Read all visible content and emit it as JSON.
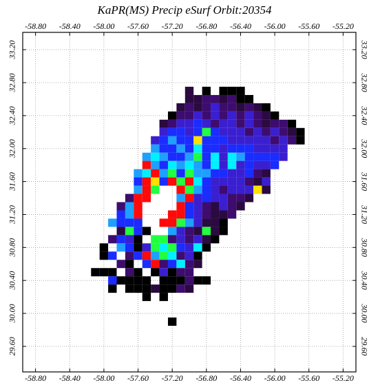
{
  "chart_data": {
    "type": "heatmap",
    "title": "KaPR(MS) Precip eSurf Orbit:20354",
    "xlim": [
      -58.95,
      -55.05
    ],
    "ylim": [
      29.29,
      33.41
    ],
    "xticks": [
      {
        "value": -58.8,
        "label": "-58.80"
      },
      {
        "value": -58.4,
        "label": "-58.40"
      },
      {
        "value": -58.0,
        "label": "-58.00"
      },
      {
        "value": -57.6,
        "label": "-57.60"
      },
      {
        "value": -57.2,
        "label": "-57.20"
      },
      {
        "value": -56.8,
        "label": "-56.80"
      },
      {
        "value": -56.4,
        "label": "-56.40"
      },
      {
        "value": -56.0,
        "label": "-56.00"
      },
      {
        "value": -55.6,
        "label": "-55.60"
      },
      {
        "value": -55.2,
        "label": "-55.20"
      }
    ],
    "yticks": [
      {
        "value": 29.6,
        "label": "29.60"
      },
      {
        "value": 30.0,
        "label": "30.00"
      },
      {
        "value": 30.4,
        "label": "30.40"
      },
      {
        "value": 30.8,
        "label": "30.80"
      },
      {
        "value": 31.2,
        "label": "31.20"
      },
      {
        "value": 31.6,
        "label": "31.60"
      },
      {
        "value": 32.0,
        "label": "32.00"
      },
      {
        "value": 32.4,
        "label": "32.40"
      },
      {
        "value": 32.8,
        "label": "32.80"
      },
      {
        "value": 33.2,
        "label": "33.20"
      }
    ],
    "grid": true,
    "rows": [
      {
        "lat": 32.7,
        "lon": [
          -57.0,
          -56.8,
          -56.6,
          -56.5,
          -56.4
        ],
        "colors": [
          "#2a0a40",
          "#000000",
          "#000000",
          "#000000",
          "#000000"
        ]
      },
      {
        "lat": 32.6,
        "lon": [
          -57.0,
          -56.9,
          -56.8,
          -56.7,
          -56.6,
          -56.5,
          -56.4,
          -56.3
        ],
        "colors": [
          "#2a0a40",
          "#2a0a40",
          "#3d0c6e",
          "#3d0c6e",
          "#2a0a40",
          "#3d0c6e",
          "#000000",
          "#000000"
        ]
      },
      {
        "lat": 32.5,
        "lon": [
          -57.1,
          -57.0,
          -56.9,
          -56.8,
          -56.7,
          -56.6,
          -56.5,
          -56.4,
          -56.3,
          -56.2,
          -56.1
        ],
        "colors": [
          "#2a0a40",
          "#3d0c6e",
          "#2a0a40",
          "#3d0c6e",
          "#3a1fd0",
          "#3d0c6e",
          "#3d0c6e",
          "#2a0a40",
          "#3d0c6e",
          "#2a0a40",
          "#000000"
        ]
      },
      {
        "lat": 32.4,
        "lon": [
          -57.2,
          -57.1,
          -57.0,
          -56.9,
          -56.8,
          -56.7,
          -56.6,
          -56.5,
          -56.4,
          -56.3,
          -56.2,
          -56.1,
          -56.0
        ],
        "colors": [
          "#000000",
          "#3d0c6e",
          "#3d0c6e",
          "#3a1fd0",
          "#3d0c6e",
          "#3a1fd0",
          "#3d0c6e",
          "#3a1fd0",
          "#3d0c6e",
          "#3a1fd0",
          "#3d0c6e",
          "#2a0a40",
          "#000000"
        ]
      },
      {
        "lat": 32.3,
        "lon": [
          -57.3,
          -57.2,
          -57.1,
          -57.0,
          -56.9,
          -56.8,
          -56.7,
          -56.6,
          -56.5,
          -56.4,
          -56.3,
          -56.2,
          -56.1,
          -56.0,
          -55.9,
          -55.8
        ],
        "colors": [
          "#2a0a40",
          "#3d0c6e",
          "#3a1fd0",
          "#3a1fd0",
          "#1a2cff",
          "#3a1fd0",
          "#3d0c6e",
          "#3a1fd0",
          "#3a1fd0",
          "#3d0c6e",
          "#3a1fd0",
          "#3d0c6e",
          "#2a0a40",
          "#3d0c6e",
          "#3d0c6e",
          "#000000"
        ]
      },
      {
        "lat": 32.2,
        "lon": [
          -57.3,
          -57.2,
          -57.1,
          -57.0,
          -56.9,
          -56.8,
          -56.7,
          -56.6,
          -56.5,
          -56.4,
          -56.3,
          -56.2,
          -56.1,
          -56.0,
          -55.9,
          -55.8,
          -55.7
        ],
        "colors": [
          "#3a1fd0",
          "#1a2cff",
          "#1a2cff",
          "#3a1fd0",
          "#1a2cff",
          "#20ff40",
          "#1a2cff",
          "#3a1fd0",
          "#3a1fd0",
          "#3a1fd0",
          "#3d0c6e",
          "#3a1fd0",
          "#3d0c6e",
          "#3a1fd0",
          "#3d0c6e",
          "#2a0a40",
          "#000000"
        ]
      },
      {
        "lat": 32.1,
        "lon": [
          -57.4,
          -57.3,
          -57.2,
          -57.1,
          -57.0,
          -56.9,
          -56.8,
          -56.7,
          -56.6,
          -56.5,
          -56.4,
          -56.3,
          -56.2,
          -56.1,
          -56.0,
          -55.9,
          -55.8,
          -55.7
        ],
        "colors": [
          "#3a1fd0",
          "#1a2cff",
          "#1ea0ff",
          "#1a2cff",
          "#1a2cff",
          "#ffe000",
          "#1a2cff",
          "#1a2cff",
          "#1a2cff",
          "#3a1fd0",
          "#3a1fd0",
          "#3a1fd0",
          "#3a1fd0",
          "#3a1fd0",
          "#3d0c6e",
          "#3a1fd0",
          "#3d0c6e",
          "#000000"
        ]
      },
      {
        "lat": 32.0,
        "lon": [
          -57.4,
          -57.3,
          -57.2,
          -57.1,
          -57.0,
          -56.9,
          -56.8,
          -56.7,
          -56.6,
          -56.5,
          -56.4,
          -56.3,
          -56.2,
          -56.1,
          -56.0,
          -55.9
        ],
        "colors": [
          "#1ea0ff",
          "#1a2cff",
          "#1a2cff",
          "#1ea0ff",
          "#1a2cff",
          "#00f0ff",
          "#1a2cff",
          "#1a2cff",
          "#3a1fd0",
          "#1a2cff",
          "#1a2cff",
          "#1a2cff",
          "#3a1fd0",
          "#3a1fd0",
          "#3a1fd0",
          "#3a1fd0"
        ]
      },
      {
        "lat": 31.9,
        "lon": [
          -57.5,
          -57.4,
          -57.3,
          -57.2,
          -57.1,
          -57.0,
          -56.9,
          -56.8,
          -56.7,
          -56.6,
          -56.5,
          -56.4,
          -56.3,
          -56.2,
          -56.1,
          -56.0,
          -55.9
        ],
        "colors": [
          "#1ea0ff",
          "#00f0ff",
          "#1ea0ff",
          "#1a2cff",
          "#1a2cff",
          "#1ea0ff",
          "#20ff40",
          "#1a2cff",
          "#00f0ff",
          "#3a1fd0",
          "#00f0ff",
          "#1ea0ff",
          "#1a2cff",
          "#1a2cff",
          "#1a2cff",
          "#1a2cff",
          "#3a1fd0"
        ]
      },
      {
        "lat": 31.8,
        "lon": [
          -57.5,
          -57.4,
          -57.3,
          -57.2,
          -57.1,
          -57.0,
          -56.9,
          -56.8,
          -56.7,
          -56.6,
          -56.5,
          -56.4,
          -56.3,
          -56.2,
          -56.1,
          -56.0
        ],
        "colors": [
          "#ff0a0a",
          "#1ea0ff",
          "#1a2cff",
          "#00f0ff",
          "#1ea0ff",
          "#00f0ff",
          "#1ea0ff",
          "#1a2cff",
          "#00f0ff",
          "#3a1fd0",
          "#00f0ff",
          "#3a1fd0",
          "#1a2cff",
          "#3a1fd0",
          "#3a1fd0",
          "#1a2cff"
        ]
      },
      {
        "lat": 31.7,
        "lon": [
          -57.6,
          -57.5,
          -57.4,
          -57.3,
          -57.2,
          -57.1,
          -57.0,
          -56.9,
          -56.8,
          -56.7,
          -56.6,
          -56.5,
          -56.4,
          -56.3,
          -56.2,
          -56.1
        ],
        "colors": [
          "#1ea0ff",
          "#00f0ff",
          "#ff0a0a",
          "#1ea0ff",
          "#20ff40",
          "#1a2cff",
          "#20ff40",
          "#1ea0ff",
          "#1ea0ff",
          "#1a2cff",
          "#1a2cff",
          "#3a1fd0",
          "#3a1fd0",
          "#1a2cff",
          "#3d0c6e",
          "#2a0a40"
        ]
      },
      {
        "lat": 31.6,
        "lon": [
          -57.6,
          -57.5,
          -57.4,
          -57.3,
          -57.2,
          -57.1,
          -57.0,
          -56.9,
          -56.8,
          -56.7,
          -56.6,
          -56.5,
          -56.4,
          -56.3,
          -56.2,
          -56.1
        ],
        "colors": [
          "#1a2cff",
          "#ff0a0a",
          "#ffe000",
          "#1a2cff",
          "#ff0a0a",
          "#20ff40",
          "#ff0a0a",
          "#00f0ff",
          "#1a2cff",
          "#3a1fd0",
          "#3a1fd0",
          "#3a1fd0",
          "#3a1fd0",
          "#3d0c6e",
          "#2a0a40",
          "#3a1fd0"
        ]
      },
      {
        "lat": 31.5,
        "lon": [
          -57.6,
          -57.5,
          -57.4,
          -57.1,
          -57.0,
          -56.9,
          -56.8,
          -56.7,
          -56.6,
          -56.5,
          -56.4,
          -56.3,
          -56.2,
          -56.1
        ],
        "colors": [
          "#1ea0ff",
          "#ff0a0a",
          "#20ff40",
          "#ff0a0a",
          "#20ff40",
          "#1ea0ff",
          "#1a2cff",
          "#3a1fd0",
          "#3d0c6e",
          "#3a1fd0",
          "#3a1fd0",
          "#3a1fd0",
          "#ffe000",
          "#2a0a40"
        ]
      },
      {
        "lat": 31.4,
        "lon": [
          -57.7,
          -57.6,
          -57.5,
          -57.1,
          -57.0,
          -56.9,
          -56.8,
          -56.7,
          -56.6,
          -56.5,
          -56.4,
          -56.3
        ],
        "colors": [
          "#3d0c6e",
          "#ff0a0a",
          "#ff0a0a",
          "#1ea0ff",
          "#ff0a0a",
          "#3a1fd0",
          "#1a2cff",
          "#3a1fd0",
          "#3a1fd0",
          "#3d0c6e",
          "#3d0c6e",
          "#2a0a40"
        ]
      },
      {
        "lat": 31.3,
        "lon": [
          -57.8,
          -57.7,
          -57.6,
          -57.1,
          -57.0,
          -56.9,
          -56.8,
          -56.7,
          -56.6,
          -56.5,
          -56.4
        ],
        "colors": [
          "#3d0c6e",
          "#1ea0ff",
          "#ff0a0a",
          "#ff0a0a",
          "#1a2cff",
          "#3a1fd0",
          "#3d0c6e",
          "#2a0a40",
          "#3a1fd0",
          "#3d0c6e",
          "#2a0a40"
        ]
      },
      {
        "lat": 31.2,
        "lon": [
          -57.8,
          -57.7,
          -57.6,
          -57.2,
          -57.1,
          -57.0,
          -56.9,
          -56.8,
          -56.7,
          -56.6,
          -56.5
        ],
        "colors": [
          "#1a2cff",
          "#1ea0ff",
          "#ff0a0a",
          "#ff0a0a",
          "#ff0a0a",
          "#1a2cff",
          "#3a1fd0",
          "#3d0c6e",
          "#2a0a40",
          "#2a0a40",
          "#3d0c6e"
        ]
      },
      {
        "lat": 31.1,
        "lon": [
          -57.9,
          -57.8,
          -57.7,
          -57.6,
          -57.3,
          -57.2,
          -57.1,
          -57.0,
          -56.9,
          -56.8,
          -56.7,
          -56.6
        ],
        "colors": [
          "#1ea0ff",
          "#1a2cff",
          "#1a2cff",
          "#1a2cff",
          "#ff0a0a",
          "#ff0a0a",
          "#20ff40",
          "#1ea0ff",
          "#3a1fd0",
          "#2a0a40",
          "#2a0a40",
          "#000000"
        ]
      },
      {
        "lat": 31.0,
        "lon": [
          -57.8,
          -57.7,
          -57.6,
          -57.5,
          -57.2,
          -57.1,
          -57.0,
          -56.9,
          -56.8,
          -56.7,
          -56.6
        ],
        "colors": [
          "#2a0a40",
          "#20ff40",
          "#1a2cff",
          "#000000",
          "#1ea0ff",
          "#3a1fd0",
          "#3d0c6e",
          "#2a0a40",
          "#20ff40",
          "#2a0a40",
          "#000000"
        ]
      },
      {
        "lat": 30.9,
        "lon": [
          -57.9,
          -57.8,
          -57.7,
          -57.6,
          -57.4,
          -57.3,
          -57.2,
          -57.1,
          -57.0,
          -56.9,
          -56.8,
          -56.7
        ],
        "colors": [
          "#3d0c6e",
          "#1a2cff",
          "#3a1fd0",
          "#000000",
          "#20ff40",
          "#20ff40",
          "#3d0c6e",
          "#3a1fd0",
          "#3d0c6e",
          "#3a1fd0",
          "#2a0a40",
          "#000000"
        ]
      },
      {
        "lat": 30.8,
        "lon": [
          -58.0,
          -57.8,
          -57.7,
          -57.6,
          -57.5,
          -57.4,
          -57.3,
          -57.2,
          -57.1,
          -57.0,
          -56.9,
          -56.8
        ],
        "colors": [
          "#000000",
          "#1ea0ff",
          "#1a2cff",
          "#000000",
          "#3a1fd0",
          "#20ff40",
          "#00f0ff",
          "#20ff40",
          "#1a2cff",
          "#3a1fd0",
          "#00f0ff",
          "#000000"
        ]
      },
      {
        "lat": 30.7,
        "lon": [
          -58.0,
          -57.9,
          -57.7,
          -57.6,
          -57.5,
          -57.4,
          -57.3,
          -57.2,
          -57.1,
          -57.0,
          -56.9
        ],
        "colors": [
          "#000000",
          "#1a2cff",
          "#3d0c6e",
          "#1a2cff",
          "#ff0a0a",
          "#1ea0ff",
          "#20ff40",
          "#00f0ff",
          "#3d0c6e",
          "#3a1fd0",
          "#000000"
        ]
      },
      {
        "lat": 30.6,
        "lon": [
          -57.8,
          -57.7,
          -57.5,
          -57.4,
          -57.3,
          -57.2,
          -57.1,
          -57.0,
          -56.9
        ],
        "colors": [
          "#3d0c6e",
          "#000000",
          "#1a2cff",
          "#ff0a0a",
          "#3d0c6e",
          "#1a2cff",
          "#00f0ff",
          "#3d0c6e",
          "#2a0a40"
        ]
      },
      {
        "lat": 30.5,
        "lon": [
          -58.1,
          -58.0,
          -57.9,
          -57.7,
          -57.6,
          -57.4,
          -57.3,
          -57.2,
          -57.1,
          -57.0
        ],
        "colors": [
          "#000000",
          "#000000",
          "#000000",
          "#3d0c6e",
          "#000000",
          "#000000",
          "#3a1fd0",
          "#000000",
          "#3d0c6e",
          "#3d0c6e"
        ]
      },
      {
        "lat": 30.4,
        "lon": [
          -57.9,
          -57.8,
          -57.7,
          -57.6,
          -57.5,
          -57.3,
          -57.2,
          -57.1,
          -57.0,
          -56.9,
          -56.8
        ],
        "colors": [
          "#1a2cff",
          "#000000",
          "#000000",
          "#000000",
          "#000000",
          "#000000",
          "#000000",
          "#000000",
          "#3d0c6e",
          "#000000",
          "#000000"
        ]
      },
      {
        "lat": 30.3,
        "lon": [
          -57.9,
          -57.7,
          -57.6,
          -57.5,
          -57.4,
          -57.3,
          -57.2,
          -57.1,
          -57.0
        ],
        "colors": [
          "#000000",
          "#000000",
          "#000000",
          "#000000",
          "#2a0a40",
          "#000000",
          "#000000",
          "#3d0c6e",
          "#2a0a40"
        ]
      },
      {
        "lat": 30.2,
        "lon": [
          -57.5,
          -57.3
        ],
        "colors": [
          "#000000",
          "#000000"
        ]
      },
      {
        "lat": 29.9,
        "lon": [
          -57.2
        ],
        "colors": [
          "#000000"
        ]
      }
    ]
  }
}
